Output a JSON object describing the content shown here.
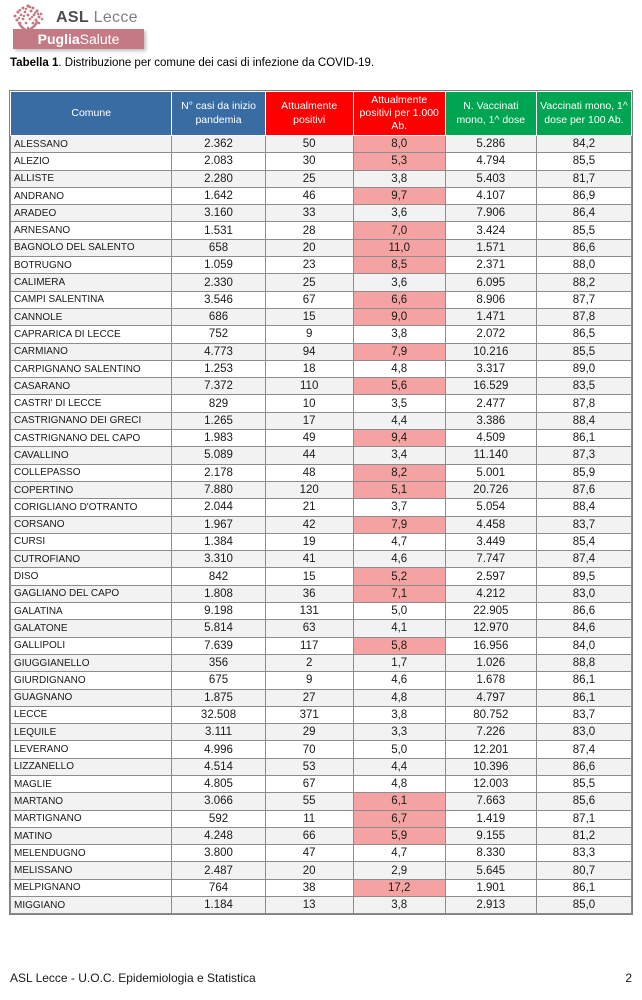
{
  "logo": {
    "asl": "ASL",
    "lecce": "Lecce",
    "banner_bold": "Puglia",
    "banner_rest": "Salute"
  },
  "title": {
    "bold": "Tabella 1",
    "rest": ". Distribuzione per comune dei casi di infezione da COVID-19."
  },
  "table": {
    "columns": [
      {
        "label": "Comune",
        "color": "#3a6ca4"
      },
      {
        "label": "N° casi da inizio pandemia",
        "color": "#3a6ca4"
      },
      {
        "label": "Attualmente positivi",
        "color": "#fe0000"
      },
      {
        "label": "Attualmente positivi per 1.000 Ab.",
        "color": "#fe0000"
      },
      {
        "label": "N. Vaccinati mono, 1^ dose",
        "color": "#00a551"
      },
      {
        "label": "Vaccinati mono, 1^ dose per 100 Ab.",
        "color": "#00a551"
      }
    ],
    "rows": [
      {
        "comune": "ALESSANO",
        "casi": "2.362",
        "positivi": "50",
        "per_1000": "8,0",
        "per_1000_highlight": true,
        "vaccinati": "5.286",
        "per_100": "84,2"
      },
      {
        "comune": "ALEZIO",
        "casi": "2.083",
        "positivi": "30",
        "per_1000": "5,3",
        "per_1000_highlight": true,
        "vaccinati": "4.794",
        "per_100": "85,5"
      },
      {
        "comune": "ALLISTE",
        "casi": "2.280",
        "positivi": "25",
        "per_1000": "3,8",
        "per_1000_highlight": false,
        "vaccinati": "5.403",
        "per_100": "81,7"
      },
      {
        "comune": "ANDRANO",
        "casi": "1.642",
        "positivi": "46",
        "per_1000": "9,7",
        "per_1000_highlight": true,
        "vaccinati": "4.107",
        "per_100": "86,9"
      },
      {
        "comune": "ARADEO",
        "casi": "3.160",
        "positivi": "33",
        "per_1000": "3,6",
        "per_1000_highlight": false,
        "vaccinati": "7.906",
        "per_100": "86,4"
      },
      {
        "comune": "ARNESANO",
        "casi": "1.531",
        "positivi": "28",
        "per_1000": "7,0",
        "per_1000_highlight": true,
        "vaccinati": "3.424",
        "per_100": "85,5"
      },
      {
        "comune": "BAGNOLO DEL SALENTO",
        "casi": "658",
        "positivi": "20",
        "per_1000": "11,0",
        "per_1000_highlight": true,
        "vaccinati": "1.571",
        "per_100": "86,6"
      },
      {
        "comune": "BOTRUGNO",
        "casi": "1.059",
        "positivi": "23",
        "per_1000": "8,5",
        "per_1000_highlight": true,
        "vaccinati": "2.371",
        "per_100": "88,0"
      },
      {
        "comune": "CALIMERA",
        "casi": "2.330",
        "positivi": "25",
        "per_1000": "3,6",
        "per_1000_highlight": false,
        "vaccinati": "6.095",
        "per_100": "88,2"
      },
      {
        "comune": "CAMPI SALENTINA",
        "casi": "3.546",
        "positivi": "67",
        "per_1000": "6,6",
        "per_1000_highlight": true,
        "vaccinati": "8.906",
        "per_100": "87,7"
      },
      {
        "comune": "CANNOLE",
        "casi": "686",
        "positivi": "15",
        "per_1000": "9,0",
        "per_1000_highlight": true,
        "vaccinati": "1.471",
        "per_100": "87,8"
      },
      {
        "comune": "CAPRARICA DI LECCE",
        "casi": "752",
        "positivi": "9",
        "per_1000": "3,8",
        "per_1000_highlight": false,
        "vaccinati": "2.072",
        "per_100": "86,5"
      },
      {
        "comune": "CARMIANO",
        "casi": "4.773",
        "positivi": "94",
        "per_1000": "7,9",
        "per_1000_highlight": true,
        "vaccinati": "10.216",
        "per_100": "85,5"
      },
      {
        "comune": "CARPIGNANO SALENTINO",
        "casi": "1.253",
        "positivi": "18",
        "per_1000": "4,8",
        "per_1000_highlight": false,
        "vaccinati": "3.317",
        "per_100": "89,0"
      },
      {
        "comune": "CASARANO",
        "casi": "7.372",
        "positivi": "110",
        "per_1000": "5,6",
        "per_1000_highlight": true,
        "vaccinati": "16.529",
        "per_100": "83,5"
      },
      {
        "comune": "CASTRI' DI LECCE",
        "casi": "829",
        "positivi": "10",
        "per_1000": "3,5",
        "per_1000_highlight": false,
        "vaccinati": "2.477",
        "per_100": "87,8"
      },
      {
        "comune": "CASTRIGNANO DEI GRECI",
        "casi": "1.265",
        "positivi": "17",
        "per_1000": "4,4",
        "per_1000_highlight": false,
        "vaccinati": "3.386",
        "per_100": "88,4"
      },
      {
        "comune": "CASTRIGNANO DEL CAPO",
        "casi": "1.983",
        "positivi": "49",
        "per_1000": "9,4",
        "per_1000_highlight": true,
        "vaccinati": "4.509",
        "per_100": "86,1"
      },
      {
        "comune": "CAVALLINO",
        "casi": "5.089",
        "positivi": "44",
        "per_1000": "3,4",
        "per_1000_highlight": false,
        "vaccinati": "11.140",
        "per_100": "87,3"
      },
      {
        "comune": "COLLEPASSO",
        "casi": "2.178",
        "positivi": "48",
        "per_1000": "8,2",
        "per_1000_highlight": true,
        "vaccinati": "5.001",
        "per_100": "85,9"
      },
      {
        "comune": "COPERTINO",
        "casi": "7.880",
        "positivi": "120",
        "per_1000": "5,1",
        "per_1000_highlight": true,
        "vaccinati": "20.726",
        "per_100": "87,6"
      },
      {
        "comune": "CORIGLIANO D'OTRANTO",
        "casi": "2.044",
        "positivi": "21",
        "per_1000": "3,7",
        "per_1000_highlight": false,
        "vaccinati": "5.054",
        "per_100": "88,4"
      },
      {
        "comune": "CORSANO",
        "casi": "1.967",
        "positivi": "42",
        "per_1000": "7,9",
        "per_1000_highlight": true,
        "vaccinati": "4.458",
        "per_100": "83,7"
      },
      {
        "comune": "CURSI",
        "casi": "1.384",
        "positivi": "19",
        "per_1000": "4,7",
        "per_1000_highlight": false,
        "vaccinati": "3.449",
        "per_100": "85,4"
      },
      {
        "comune": "CUTROFIANO",
        "casi": "3.310",
        "positivi": "41",
        "per_1000": "4,6",
        "per_1000_highlight": false,
        "vaccinati": "7.747",
        "per_100": "87,4"
      },
      {
        "comune": "DISO",
        "casi": "842",
        "positivi": "15",
        "per_1000": "5,2",
        "per_1000_highlight": true,
        "vaccinati": "2.597",
        "per_100": "89,5"
      },
      {
        "comune": "GAGLIANO DEL CAPO",
        "casi": "1.808",
        "positivi": "36",
        "per_1000": "7,1",
        "per_1000_highlight": true,
        "vaccinati": "4.212",
        "per_100": "83,0"
      },
      {
        "comune": "GALATINA",
        "casi": "9.198",
        "positivi": "131",
        "per_1000": "5,0",
        "per_1000_highlight": false,
        "vaccinati": "22.905",
        "per_100": "86,6"
      },
      {
        "comune": "GALATONE",
        "casi": "5.814",
        "positivi": "63",
        "per_1000": "4,1",
        "per_1000_highlight": false,
        "vaccinati": "12.970",
        "per_100": "84,6"
      },
      {
        "comune": "GALLIPOLI",
        "casi": "7.639",
        "positivi": "117",
        "per_1000": "5,8",
        "per_1000_highlight": true,
        "vaccinati": "16.956",
        "per_100": "84,0"
      },
      {
        "comune": "GIUGGIANELLO",
        "casi": "356",
        "positivi": "2",
        "per_1000": "1,7",
        "per_1000_highlight": false,
        "vaccinati": "1.026",
        "per_100": "88,8"
      },
      {
        "comune": "GIURDIGNANO",
        "casi": "675",
        "positivi": "9",
        "per_1000": "4,6",
        "per_1000_highlight": false,
        "vaccinati": "1.678",
        "per_100": "86,1"
      },
      {
        "comune": "GUAGNANO",
        "casi": "1.875",
        "positivi": "27",
        "per_1000": "4,8",
        "per_1000_highlight": false,
        "vaccinati": "4.797",
        "per_100": "86,1"
      },
      {
        "comune": "LECCE",
        "casi": "32.508",
        "positivi": "371",
        "per_1000": "3,8",
        "per_1000_highlight": false,
        "vaccinati": "80.752",
        "per_100": "83,7"
      },
      {
        "comune": "LEQUILE",
        "casi": "3.111",
        "positivi": "29",
        "per_1000": "3,3",
        "per_1000_highlight": false,
        "vaccinati": "7.226",
        "per_100": "83,0"
      },
      {
        "comune": "LEVERANO",
        "casi": "4.996",
        "positivi": "70",
        "per_1000": "5,0",
        "per_1000_highlight": false,
        "vaccinati": "12.201",
        "per_100": "87,4"
      },
      {
        "comune": "LIZZANELLO",
        "casi": "4.514",
        "positivi": "53",
        "per_1000": "4,4",
        "per_1000_highlight": false,
        "vaccinati": "10.396",
        "per_100": "86,6"
      },
      {
        "comune": "MAGLIE",
        "casi": "4.805",
        "positivi": "67",
        "per_1000": "4,8",
        "per_1000_highlight": false,
        "vaccinati": "12.003",
        "per_100": "85,5"
      },
      {
        "comune": "MARTANO",
        "casi": "3.066",
        "positivi": "55",
        "per_1000": "6,1",
        "per_1000_highlight": true,
        "vaccinati": "7.663",
        "per_100": "85,6"
      },
      {
        "comune": "MARTIGNANO",
        "casi": "592",
        "positivi": "11",
        "per_1000": "6,7",
        "per_1000_highlight": true,
        "vaccinati": "1.419",
        "per_100": "87,1"
      },
      {
        "comune": "MATINO",
        "casi": "4.248",
        "positivi": "66",
        "per_1000": "5,9",
        "per_1000_highlight": true,
        "vaccinati": "9.155",
        "per_100": "81,2"
      },
      {
        "comune": "MELENDUGNO",
        "casi": "3.800",
        "positivi": "47",
        "per_1000": "4,7",
        "per_1000_highlight": false,
        "vaccinati": "8.330",
        "per_100": "83,3"
      },
      {
        "comune": "MELISSANO",
        "casi": "2.487",
        "positivi": "20",
        "per_1000": "2,9",
        "per_1000_highlight": false,
        "vaccinati": "5.645",
        "per_100": "80,7"
      },
      {
        "comune": "MELPIGNANO",
        "casi": "764",
        "positivi": "38",
        "per_1000": "17,2",
        "per_1000_highlight": true,
        "vaccinati": "1.901",
        "per_100": "86,1"
      },
      {
        "comune": "MIGGIANO",
        "casi": "1.184",
        "positivi": "13",
        "per_1000": "3,8",
        "per_1000_highlight": false,
        "vaccinati": "2.913",
        "per_100": "85,0"
      }
    ]
  },
  "footer": {
    "left": "ASL Lecce - U.O.C. Epidemiologia e Statistica",
    "page": "2"
  },
  "colors": {
    "header_blue": "#3a6ca4",
    "header_red": "#fe0000",
    "header_green": "#00a551",
    "highlight_pink": "#f5a3a2",
    "stripe_gray": "#f2f2f2",
    "brand_rose": "#c47a84"
  }
}
